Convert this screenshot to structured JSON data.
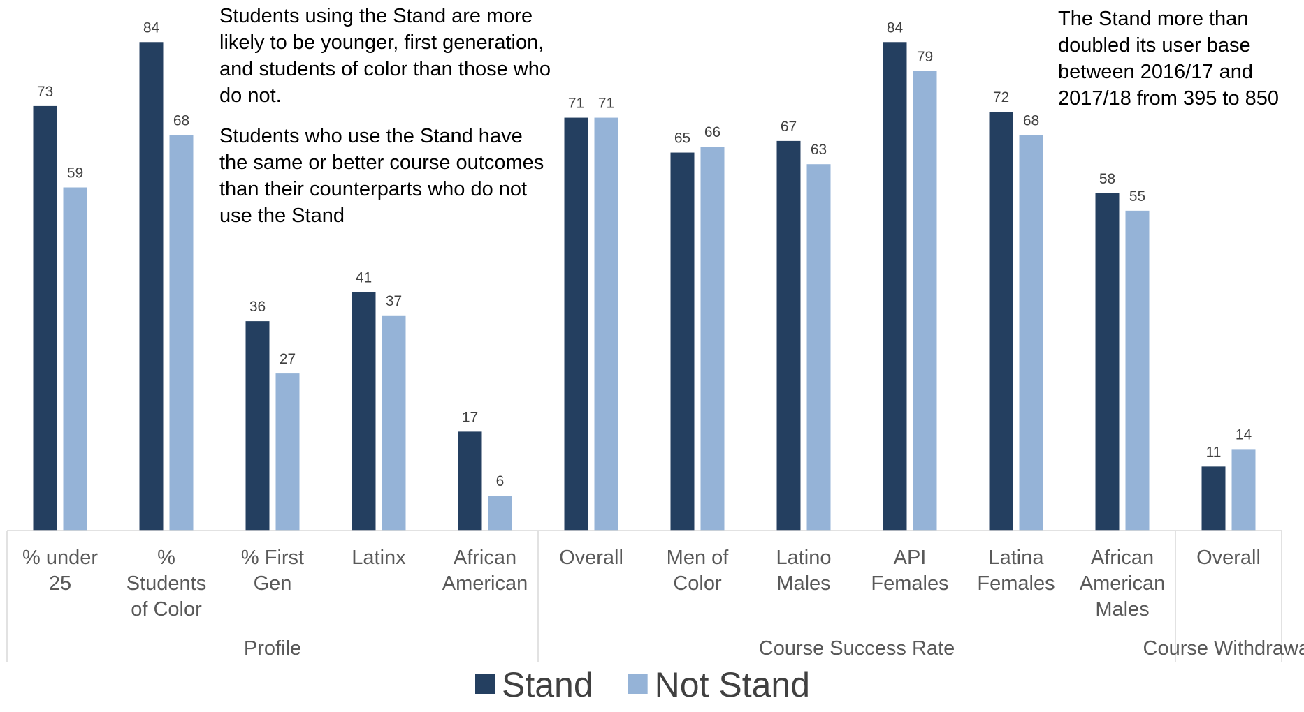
{
  "chart_data": {
    "type": "bar",
    "groups": [
      {
        "label": "Profile",
        "categories": [
          [
            "% under",
            "25"
          ],
          [
            "%",
            "Students",
            "of Color"
          ],
          [
            "% First",
            "Gen"
          ],
          [
            "Latinx"
          ],
          [
            "African",
            "American"
          ]
        ]
      },
      {
        "label": "Course Success Rate",
        "categories": [
          [
            "Overall"
          ],
          [
            "Men of",
            "Color"
          ],
          [
            "Latino",
            "Males"
          ],
          [
            "API",
            "Females"
          ],
          [
            "Latina",
            "Females"
          ],
          [
            "African",
            "American",
            "Males"
          ]
        ]
      },
      {
        "label": "Course Withdrawal",
        "categories": [
          [
            "Overall"
          ]
        ]
      }
    ],
    "series": [
      {
        "name": "Stand",
        "color": "#243F60",
        "values": [
          73,
          84,
          36,
          41,
          17,
          71,
          65,
          67,
          84,
          72,
          58,
          11
        ]
      },
      {
        "name": "Not Stand",
        "color": "#95B3D7",
        "values": [
          59,
          68,
          27,
          37,
          6,
          71,
          66,
          63,
          79,
          68,
          55,
          14
        ]
      }
    ],
    "ylim": [
      0,
      100
    ],
    "grid": false,
    "legend_position": "bottom"
  },
  "annotations": {
    "left": [
      "Students using the Stand are more likely to be younger, first generation, and students of color than those who do not.",
      "Students who use the Stand have the same or better course outcomes than their counterparts who do not use the Stand"
    ],
    "right": "The Stand more than doubled its user base between 2016/17 and 2017/18 from 395 to 850"
  }
}
